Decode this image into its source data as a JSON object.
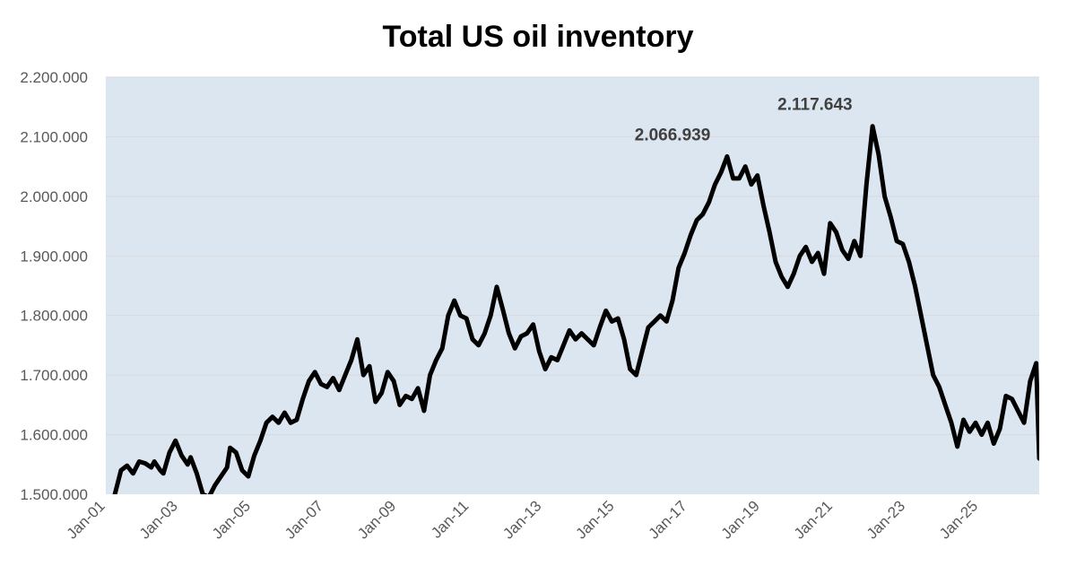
{
  "chart_data": {
    "type": "line",
    "title": "Total US oil inventory",
    "xlabel": "",
    "ylabel": "",
    "ylim": [
      1500000,
      2200000
    ],
    "xlim": [
      "2001-01",
      "2026-09"
    ],
    "grid": true,
    "legend": "none",
    "colors": {
      "line": "#000000",
      "plot_bg": "#dce6f1",
      "grid": "#d9d9d9"
    },
    "yticks": [
      {
        "value": 1500000,
        "label": "1.500.000"
      },
      {
        "value": 1600000,
        "label": "1.600.000"
      },
      {
        "value": 1700000,
        "label": "1.700.000"
      },
      {
        "value": 1800000,
        "label": "1.800.000"
      },
      {
        "value": 1900000,
        "label": "1.900.000"
      },
      {
        "value": 2000000,
        "label": "2.000.000"
      },
      {
        "value": 2100000,
        "label": "2.100.000"
      },
      {
        "value": 2200000,
        "label": "2.200.000"
      }
    ],
    "xticks": [
      {
        "value": "2001-01",
        "label": "Jan-01"
      },
      {
        "value": "2003-01",
        "label": "Jan-03"
      },
      {
        "value": "2005-01",
        "label": "Jan-05"
      },
      {
        "value": "2007-01",
        "label": "Jan-07"
      },
      {
        "value": "2009-01",
        "label": "Jan-09"
      },
      {
        "value": "2011-01",
        "label": "Jan-11"
      },
      {
        "value": "2013-01",
        "label": "Jan-13"
      },
      {
        "value": "2015-01",
        "label": "Jan-15"
      },
      {
        "value": "2017-01",
        "label": "Jan-17"
      },
      {
        "value": "2019-01",
        "label": "Jan-19"
      },
      {
        "value": "2021-01",
        "label": "Jan-21"
      },
      {
        "value": "2023-01",
        "label": "Jan-23"
      },
      {
        "value": "2025-01",
        "label": "Jan-25"
      }
    ],
    "annotations": [
      {
        "text": "2.066.939",
        "x": "2016-08",
        "y": 2066939
      },
      {
        "text": "2.117.643",
        "x": "2020-07",
        "y": 2117643
      }
    ],
    "series": [
      {
        "points": [
          [
            "2001-04",
            1500000
          ],
          [
            "2001-06",
            1540000
          ],
          [
            "2001-08",
            1548000
          ],
          [
            "2001-10",
            1535000
          ],
          [
            "2001-12",
            1555000
          ],
          [
            "2002-02",
            1552000
          ],
          [
            "2002-04",
            1545000
          ],
          [
            "2002-05",
            1555000
          ],
          [
            "2002-07",
            1540000
          ],
          [
            "2002-08",
            1535000
          ],
          [
            "2002-10",
            1570000
          ],
          [
            "2002-12",
            1590000
          ],
          [
            "2003-02",
            1565000
          ],
          [
            "2003-04",
            1550000
          ],
          [
            "2003-05",
            1562000
          ],
          [
            "2003-07",
            1535000
          ],
          [
            "2003-09",
            1500000
          ],
          [
            "2003-11",
            1495000
          ],
          [
            "2004-01",
            1515000
          ],
          [
            "2004-03",
            1530000
          ],
          [
            "2004-05",
            1545000
          ],
          [
            "2004-06",
            1578000
          ],
          [
            "2004-08",
            1570000
          ],
          [
            "2004-10",
            1540000
          ],
          [
            "2004-12",
            1530000
          ],
          [
            "2005-02",
            1565000
          ],
          [
            "2005-04",
            1590000
          ],
          [
            "2005-06",
            1620000
          ],
          [
            "2005-08",
            1630000
          ],
          [
            "2005-10",
            1620000
          ],
          [
            "2005-12",
            1637000
          ],
          [
            "2006-02",
            1620000
          ],
          [
            "2006-04",
            1625000
          ],
          [
            "2006-06",
            1660000
          ],
          [
            "2006-08",
            1690000
          ],
          [
            "2006-10",
            1705000
          ],
          [
            "2006-12",
            1685000
          ],
          [
            "2007-02",
            1680000
          ],
          [
            "2007-04",
            1695000
          ],
          [
            "2007-06",
            1675000
          ],
          [
            "2007-08",
            1700000
          ],
          [
            "2007-10",
            1725000
          ],
          [
            "2007-12",
            1760000
          ],
          [
            "2008-02",
            1700000
          ],
          [
            "2008-04",
            1715000
          ],
          [
            "2008-06",
            1655000
          ],
          [
            "2008-08",
            1670000
          ],
          [
            "2008-10",
            1705000
          ],
          [
            "2008-12",
            1690000
          ],
          [
            "2009-02",
            1650000
          ],
          [
            "2009-04",
            1665000
          ],
          [
            "2009-06",
            1660000
          ],
          [
            "2009-08",
            1678000
          ],
          [
            "2009-10",
            1640000
          ],
          [
            "2009-12",
            1700000
          ],
          [
            "2010-02",
            1725000
          ],
          [
            "2010-04",
            1745000
          ],
          [
            "2010-06",
            1800000
          ],
          [
            "2010-08",
            1825000
          ],
          [
            "2010-10",
            1800000
          ],
          [
            "2010-12",
            1795000
          ],
          [
            "2011-02",
            1760000
          ],
          [
            "2011-04",
            1750000
          ],
          [
            "2011-06",
            1770000
          ],
          [
            "2011-08",
            1800000
          ],
          [
            "2011-10",
            1848000
          ],
          [
            "2011-12",
            1810000
          ],
          [
            "2012-02",
            1770000
          ],
          [
            "2012-04",
            1745000
          ],
          [
            "2012-06",
            1765000
          ],
          [
            "2012-08",
            1770000
          ],
          [
            "2012-10",
            1785000
          ],
          [
            "2012-12",
            1740000
          ],
          [
            "2013-02",
            1710000
          ],
          [
            "2013-04",
            1730000
          ],
          [
            "2013-06",
            1725000
          ],
          [
            "2013-08",
            1750000
          ],
          [
            "2013-10",
            1775000
          ],
          [
            "2013-12",
            1760000
          ],
          [
            "2014-02",
            1770000
          ],
          [
            "2014-04",
            1760000
          ],
          [
            "2014-06",
            1750000
          ],
          [
            "2014-08",
            1780000
          ],
          [
            "2014-10",
            1808000
          ],
          [
            "2014-12",
            1790000
          ],
          [
            "2015-02",
            1795000
          ],
          [
            "2015-04",
            1760000
          ],
          [
            "2015-06",
            1710000
          ],
          [
            "2015-08",
            1700000
          ],
          [
            "2015-10",
            1740000
          ],
          [
            "2015-12",
            1780000
          ],
          [
            "2016-02",
            1790000
          ],
          [
            "2016-04",
            1800000
          ],
          [
            "2016-06",
            1790000
          ],
          [
            "2016-08",
            1825000
          ],
          [
            "2016-10",
            1880000
          ],
          [
            "2016-12",
            1905000
          ],
          [
            "2017-02",
            1935000
          ],
          [
            "2017-04",
            1960000
          ],
          [
            "2017-06",
            1970000
          ],
          [
            "2017-08",
            1990000
          ],
          [
            "2017-10",
            2020000
          ],
          [
            "2017-12",
            2040000
          ],
          [
            "2018-02",
            2066939
          ],
          [
            "2018-04",
            2030000
          ],
          [
            "2018-06",
            2030000
          ],
          [
            "2018-08",
            2050000
          ],
          [
            "2018-10",
            2020000
          ],
          [
            "2018-12",
            2035000
          ],
          [
            "2019-02",
            1985000
          ],
          [
            "2019-04",
            1940000
          ],
          [
            "2019-06",
            1890000
          ],
          [
            "2019-08",
            1865000
          ],
          [
            "2019-10",
            1848000
          ],
          [
            "2019-12",
            1870000
          ],
          [
            "2020-02",
            1900000
          ],
          [
            "2020-04",
            1915000
          ],
          [
            "2020-06",
            1890000
          ],
          [
            "2020-08",
            1905000
          ],
          [
            "2020-10",
            1870000
          ],
          [
            "2020-12",
            1955000
          ],
          [
            "2021-02",
            1940000
          ],
          [
            "2021-04",
            1910000
          ],
          [
            "2021-06",
            1895000
          ],
          [
            "2021-08",
            1925000
          ],
          [
            "2021-10",
            1900000
          ],
          [
            "2021-12",
            2020000
          ],
          [
            "2022-02",
            2117643
          ],
          [
            "2022-04",
            2070000
          ],
          [
            "2022-06",
            2000000
          ],
          [
            "2022-08",
            1965000
          ],
          [
            "2022-10",
            1925000
          ],
          [
            "2022-12",
            1920000
          ],
          [
            "2023-02",
            1890000
          ],
          [
            "2023-04",
            1850000
          ],
          [
            "2023-06",
            1800000
          ],
          [
            "2023-08",
            1750000
          ],
          [
            "2023-10",
            1700000
          ],
          [
            "2023-12",
            1680000
          ],
          [
            "2024-02",
            1650000
          ],
          [
            "2024-04",
            1620000
          ],
          [
            "2024-06",
            1580000
          ],
          [
            "2024-08",
            1625000
          ],
          [
            "2024-10",
            1605000
          ],
          [
            "2024-12",
            1620000
          ],
          [
            "2025-02",
            1600000
          ],
          [
            "2025-04",
            1620000
          ],
          [
            "2025-06",
            1585000
          ],
          [
            "2025-08",
            1610000
          ],
          [
            "2025-10",
            1665000
          ],
          [
            "2025-12",
            1660000
          ],
          [
            "2026-02",
            1640000
          ],
          [
            "2026-04",
            1620000
          ],
          [
            "2026-06",
            1690000
          ],
          [
            "2026-08",
            1720000
          ],
          [
            "2026-09",
            1560000
          ]
        ]
      }
    ]
  }
}
